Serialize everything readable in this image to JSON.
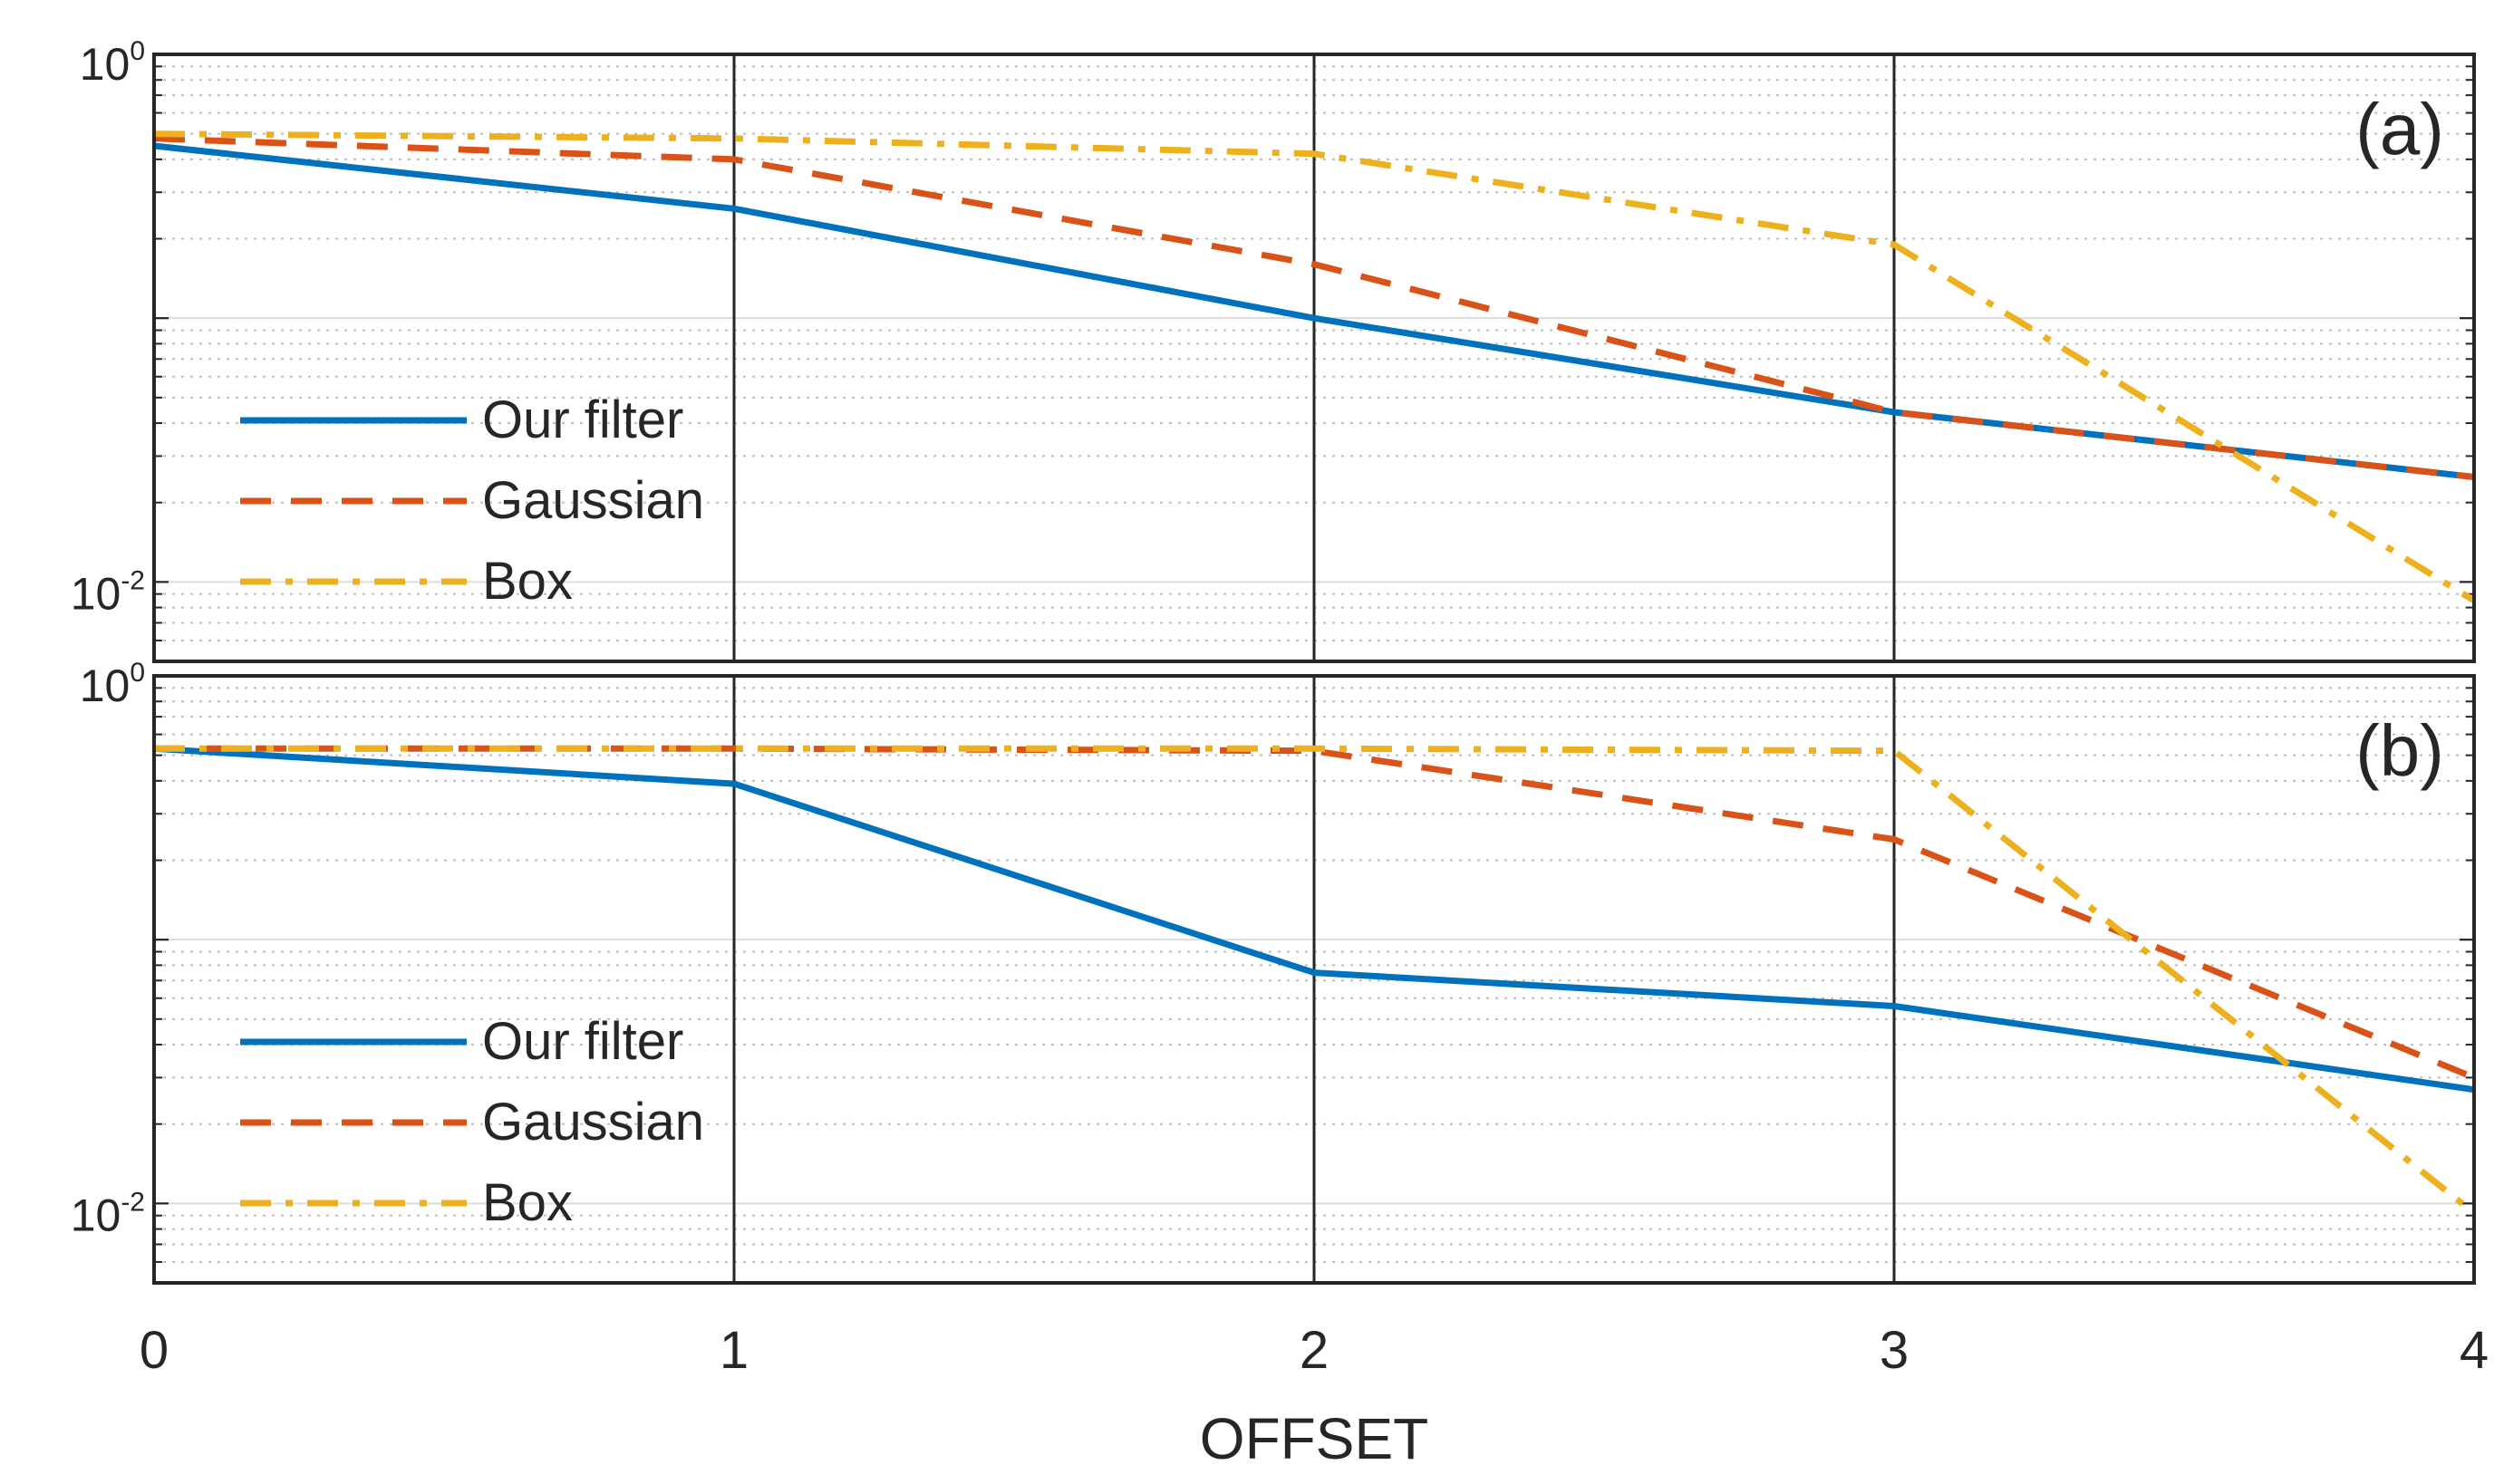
{
  "chart_data": {
    "type": "line",
    "xlabel": "OFFSET",
    "x": [
      0,
      1,
      2,
      3,
      4
    ],
    "xlim": [
      0,
      4
    ],
    "x_ticks": [
      "0",
      "1",
      "2",
      "3",
      "4"
    ],
    "yscale": "log",
    "ylim": [
      0.005,
      1
    ],
    "y_ticks": [
      {
        "base": "10",
        "exp": "0",
        "value": 1
      },
      {
        "base": "10",
        "exp": "-2",
        "value": 0.01
      }
    ],
    "grid": true,
    "legend_position": "lower-left",
    "colors": {
      "our_filter": "#0072BD",
      "gaussian": "#D95319",
      "box": "#EDB120"
    },
    "panels": [
      {
        "tag": "(a)",
        "series": [
          {
            "key": "our_filter",
            "name": "Our filter",
            "style": "solid",
            "values": [
              0.45,
              0.26,
              0.1,
              0.044,
              0.025
            ]
          },
          {
            "key": "gaussian",
            "name": "Gaussian",
            "style": "dashed",
            "values": [
              0.48,
              0.4,
              0.16,
              0.044,
              0.025
            ]
          },
          {
            "key": "box",
            "name": "Box",
            "style": "dashdot",
            "values": [
              0.5,
              0.48,
              0.42,
              0.19,
              0.0085
            ]
          }
        ]
      },
      {
        "tag": "(b)",
        "series": [
          {
            "key": "our_filter",
            "name": "Our filter",
            "style": "solid",
            "values": [
              0.53,
              0.39,
              0.075,
              0.056,
              0.027
            ]
          },
          {
            "key": "gaussian",
            "name": "Gaussian",
            "style": "dashed",
            "values": [
              0.53,
              0.53,
              0.52,
              0.24,
              0.03
            ]
          },
          {
            "key": "box",
            "name": "Box",
            "style": "dashdot",
            "values": [
              0.53,
              0.53,
              0.53,
              0.52,
              0.0092
            ]
          }
        ]
      }
    ]
  }
}
